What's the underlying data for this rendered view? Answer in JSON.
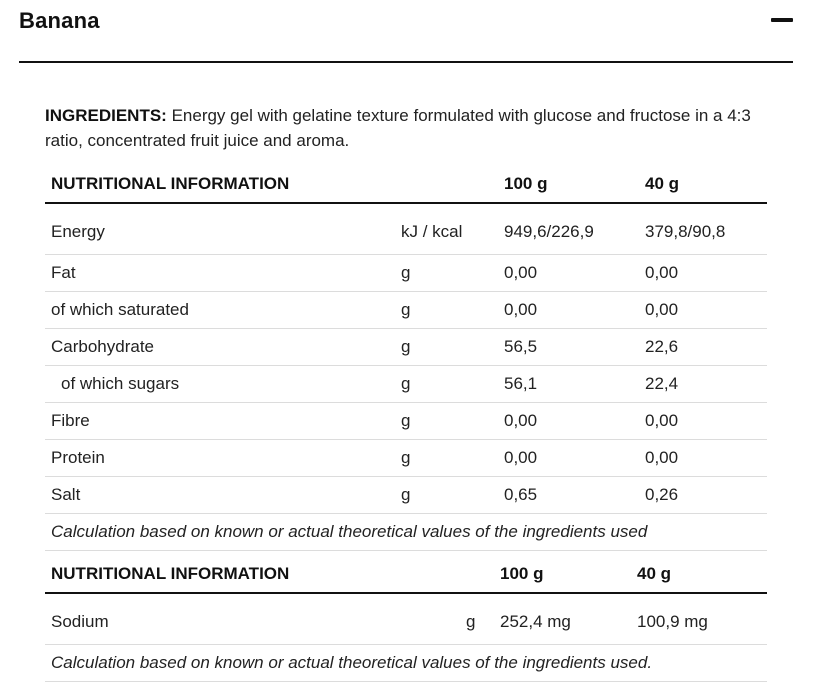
{
  "header": {
    "title": "Banana",
    "collapse_icon": "minus-icon"
  },
  "ingredients": {
    "label": "INGREDIENTS:",
    "text": " Energy gel with gelatine texture formulated with glucose and fructose in a 4:3 ratio, concentrated fruit juice and aroma."
  },
  "table1": {
    "headers": [
      "NUTRITIONAL INFORMATION",
      "",
      "100 g",
      "40 g"
    ],
    "rows": [
      {
        "name": "Energy",
        "unit": "kJ / kcal",
        "per100": "949,6/226,9",
        "per40": "379,8/90,8"
      },
      {
        "name": "Fat",
        "unit": "g",
        "per100": "0,00",
        "per40": "0,00"
      },
      {
        "name": "of which saturated",
        "unit": "g",
        "per100": "0,00",
        "per40": "0,00"
      },
      {
        "name": "Carbohydrate",
        "unit": "g",
        "per100": "56,5",
        "per40": "22,6"
      },
      {
        "name": "of which sugars",
        "unit": "g",
        "per100": "56,1",
        "per40": "22,4"
      },
      {
        "name": "Fibre",
        "unit": "g",
        "per100": "0,00",
        "per40": "0,00"
      },
      {
        "name": "Protein",
        "unit": "g",
        "per100": "0,00",
        "per40": "0,00"
      },
      {
        "name": "Salt",
        "unit": "g",
        "per100": "0,65",
        "per40": "0,26"
      }
    ],
    "note": "Calculation based on known or actual theoretical values of the ingredients used"
  },
  "table2": {
    "headers": [
      "NUTRITIONAL INFORMATION",
      "",
      "100 g",
      "40 g"
    ],
    "rows": [
      {
        "name": "Sodium",
        "unit": "g",
        "per100": "252,4 mg",
        "per40": "100,9 mg"
      }
    ],
    "note": "Calculation based on known or actual theoretical values of the ingredients used."
  }
}
